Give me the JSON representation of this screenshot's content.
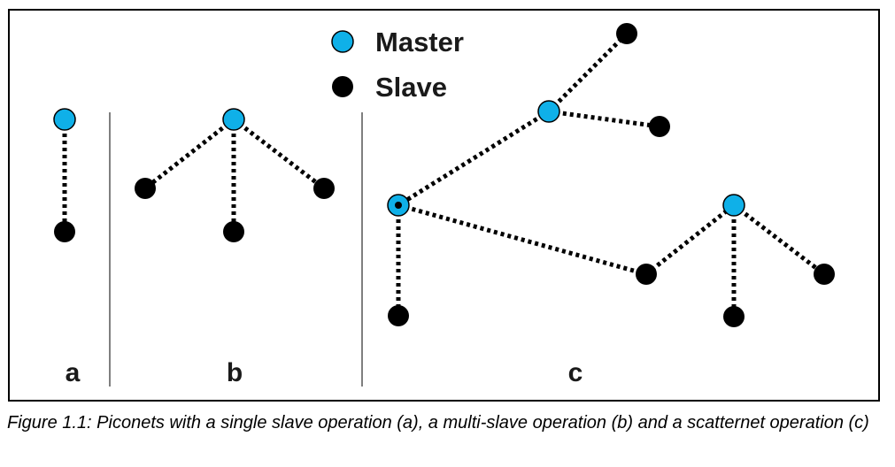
{
  "legend": {
    "master_label": "Master",
    "slave_label": "Slave"
  },
  "panels": {
    "a": "a",
    "b": "b",
    "c": "c"
  },
  "colors": {
    "master": "#0fb0e8",
    "slave": "#000000"
  },
  "caption": "Figure 1.1:  Piconets with a single slave operation (a), a multi-slave operation (b) and a scatternet operation (c)"
}
